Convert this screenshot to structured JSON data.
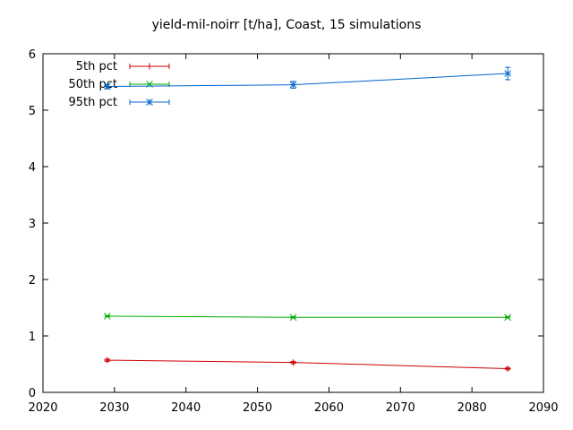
{
  "chart_data": {
    "type": "line",
    "title": "yield-mil-noirr [t/ha], Coast, 15 simulations",
    "xlabel": "",
    "ylabel": "",
    "xlim": [
      2020,
      2090
    ],
    "ylim": [
      0,
      6
    ],
    "xticks": [
      2020,
      2030,
      2040,
      2050,
      2060,
      2070,
      2080,
      2090
    ],
    "yticks": [
      0,
      1,
      2,
      3,
      4,
      5,
      6
    ],
    "grid": false,
    "legend_position": "top-left",
    "x": [
      2029,
      2055,
      2085
    ],
    "series": [
      {
        "name": "5th pct",
        "color": "#cc0000",
        "marker": "plus",
        "values": [
          0.57,
          0.53,
          0.42
        ],
        "errors": [
          0.02,
          0.02,
          0.02
        ]
      },
      {
        "name": "50th pct",
        "color": "#00aa00",
        "marker": "cross",
        "values": [
          1.35,
          1.33,
          1.33
        ],
        "errors": [
          0.01,
          0.01,
          0.01
        ]
      },
      {
        "name": "95th pct",
        "color": "#0066cc",
        "marker": "star",
        "values": [
          5.42,
          5.45,
          5.65
        ],
        "errors": [
          0.04,
          0.06,
          0.11
        ]
      }
    ]
  }
}
